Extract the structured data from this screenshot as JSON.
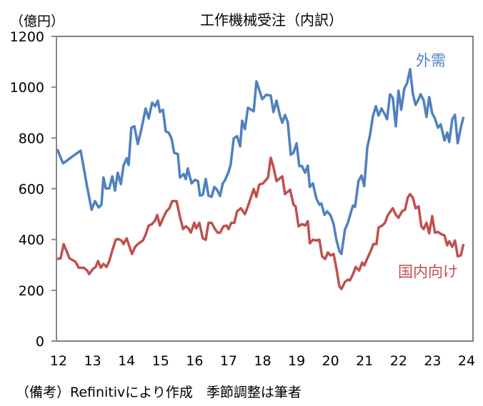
{
  "chart_data": {
    "type": "line",
    "title": "工作機械受注（内訳）",
    "ylabel": "（億円）",
    "xlabel": "",
    "note": "（備考）Refinitivにより作成　季節調整は筆者",
    "xlim": [
      12,
      24
    ],
    "ylim": [
      0,
      1200
    ],
    "x_ticks": [
      "12",
      "13",
      "14",
      "15",
      "16",
      "17",
      "18",
      "19",
      "20",
      "21",
      "22",
      "23",
      "24"
    ],
    "y_ticks": [
      "0",
      "200",
      "400",
      "600",
      "800",
      "1000",
      "1200"
    ],
    "grid": false,
    "legend": "inline labels at line ends",
    "series": [
      {
        "name": "外需",
        "color": "#4f81bd",
        "points": [
          [
            11.96,
            756
          ],
          [
            12.13,
            700
          ],
          [
            12.48,
            734
          ],
          [
            12.65,
            750
          ],
          [
            12.84,
            607
          ],
          [
            12.97,
            517
          ],
          [
            13.07,
            551
          ],
          [
            13.18,
            526
          ],
          [
            13.26,
            537
          ],
          [
            13.32,
            644
          ],
          [
            13.39,
            601
          ],
          [
            13.49,
            601
          ],
          [
            13.58,
            649
          ],
          [
            13.66,
            593
          ],
          [
            13.74,
            663
          ],
          [
            13.83,
            618
          ],
          [
            13.91,
            691
          ],
          [
            14.0,
            720
          ],
          [
            14.06,
            694
          ],
          [
            14.14,
            840
          ],
          [
            14.23,
            846
          ],
          [
            14.33,
            776
          ],
          [
            14.42,
            826
          ],
          [
            14.48,
            863
          ],
          [
            14.56,
            916
          ],
          [
            14.65,
            877
          ],
          [
            14.75,
            939
          ],
          [
            14.84,
            925
          ],
          [
            14.92,
            947
          ],
          [
            14.98,
            902
          ],
          [
            15.07,
            911
          ],
          [
            15.15,
            826
          ],
          [
            15.24,
            821
          ],
          [
            15.32,
            798
          ],
          [
            15.4,
            742
          ],
          [
            15.51,
            736
          ],
          [
            15.57,
            644
          ],
          [
            15.68,
            658
          ],
          [
            15.74,
            638
          ],
          [
            15.8,
            680
          ],
          [
            15.91,
            621
          ],
          [
            16.01,
            635
          ],
          [
            16.1,
            630
          ],
          [
            16.16,
            573
          ],
          [
            16.24,
            576
          ],
          [
            16.33,
            638
          ],
          [
            16.41,
            573
          ],
          [
            16.5,
            568
          ],
          [
            16.58,
            607
          ],
          [
            16.66,
            596
          ],
          [
            16.75,
            571
          ],
          [
            16.83,
            621
          ],
          [
            16.89,
            632
          ],
          [
            17.0,
            666
          ],
          [
            17.06,
            694
          ],
          [
            17.15,
            798
          ],
          [
            17.25,
            807
          ],
          [
            17.34,
            767
          ],
          [
            17.4,
            868
          ],
          [
            17.48,
            835
          ],
          [
            17.57,
            919
          ],
          [
            17.74,
            905
          ],
          [
            17.82,
            1023
          ],
          [
            17.99,
            953
          ],
          [
            18.11,
            970
          ],
          [
            18.24,
            967
          ],
          [
            18.32,
            902
          ],
          [
            18.41,
            947
          ],
          [
            18.51,
            888
          ],
          [
            18.58,
            860
          ],
          [
            18.66,
            891
          ],
          [
            18.74,
            863
          ],
          [
            18.83,
            734
          ],
          [
            18.91,
            742
          ],
          [
            19.0,
            779
          ],
          [
            19.08,
            689
          ],
          [
            19.16,
            689
          ],
          [
            19.25,
            663
          ],
          [
            19.33,
            691
          ],
          [
            19.39,
            607
          ],
          [
            19.48,
            621
          ],
          [
            19.58,
            562
          ],
          [
            19.67,
            537
          ],
          [
            19.73,
            542
          ],
          [
            19.82,
            497
          ],
          [
            19.9,
            511
          ],
          [
            20.0,
            495
          ],
          [
            20.09,
            461
          ],
          [
            20.17,
            399
          ],
          [
            20.26,
            354
          ],
          [
            20.32,
            343
          ],
          [
            20.42,
            438
          ],
          [
            20.51,
            466
          ],
          [
            20.59,
            503
          ],
          [
            20.66,
            534
          ],
          [
            20.72,
            528
          ],
          [
            20.82,
            630
          ],
          [
            20.91,
            652
          ],
          [
            20.99,
            610
          ],
          [
            21.08,
            764
          ],
          [
            21.16,
            812
          ],
          [
            21.24,
            883
          ],
          [
            21.33,
            925
          ],
          [
            21.41,
            888
          ],
          [
            21.5,
            916
          ],
          [
            21.58,
            897
          ],
          [
            21.66,
            874
          ],
          [
            21.75,
            972
          ],
          [
            21.83,
            958
          ],
          [
            21.92,
            846
          ],
          [
            22.0,
            986
          ],
          [
            22.08,
            911
          ],
          [
            22.17,
            995
          ],
          [
            22.25,
            1015
          ],
          [
            22.34,
            1071
          ],
          [
            22.42,
            975
          ],
          [
            22.5,
            930
          ],
          [
            22.59,
            953
          ],
          [
            22.65,
            972
          ],
          [
            22.74,
            947
          ],
          [
            22.82,
            883
          ],
          [
            22.9,
            961
          ],
          [
            22.99,
            897
          ],
          [
            23.07,
            877
          ],
          [
            23.16,
            840
          ],
          [
            23.24,
            854
          ],
          [
            23.35,
            790
          ],
          [
            23.43,
            821
          ],
          [
            23.49,
            784
          ],
          [
            23.58,
            874
          ],
          [
            23.66,
            891
          ],
          [
            23.74,
            779
          ],
          [
            23.83,
            840
          ],
          [
            23.91,
            883
          ]
        ]
      },
      {
        "name": "国内向け",
        "color": "#c0504d",
        "points": [
          [
            11.96,
            323
          ],
          [
            12.06,
            326
          ],
          [
            12.15,
            382
          ],
          [
            12.23,
            357
          ],
          [
            12.32,
            326
          ],
          [
            12.42,
            318
          ],
          [
            12.5,
            312
          ],
          [
            12.59,
            289
          ],
          [
            12.74,
            289
          ],
          [
            12.84,
            278
          ],
          [
            12.9,
            264
          ],
          [
            13.01,
            284
          ],
          [
            13.09,
            292
          ],
          [
            13.16,
            315
          ],
          [
            13.24,
            289
          ],
          [
            13.32,
            304
          ],
          [
            13.41,
            292
          ],
          [
            13.49,
            315
          ],
          [
            13.58,
            357
          ],
          [
            13.68,
            399
          ],
          [
            13.76,
            402
          ],
          [
            13.85,
            396
          ],
          [
            13.91,
            382
          ],
          [
            14.0,
            405
          ],
          [
            14.08,
            374
          ],
          [
            14.16,
            343
          ],
          [
            14.25,
            371
          ],
          [
            14.33,
            382
          ],
          [
            14.48,
            396
          ],
          [
            14.56,
            419
          ],
          [
            14.65,
            455
          ],
          [
            14.75,
            461
          ],
          [
            14.84,
            475
          ],
          [
            14.9,
            497
          ],
          [
            14.98,
            455
          ],
          [
            15.07,
            483
          ],
          [
            15.17,
            511
          ],
          [
            15.26,
            523
          ],
          [
            15.34,
            551
          ],
          [
            15.47,
            551
          ],
          [
            15.57,
            489
          ],
          [
            15.66,
            441
          ],
          [
            15.74,
            452
          ],
          [
            15.82,
            444
          ],
          [
            15.89,
            427
          ],
          [
            15.99,
            466
          ],
          [
            16.05,
            444
          ],
          [
            16.14,
            466
          ],
          [
            16.24,
            405
          ],
          [
            16.33,
            399
          ],
          [
            16.41,
            466
          ],
          [
            16.5,
            466
          ],
          [
            16.6,
            441
          ],
          [
            16.68,
            427
          ],
          [
            16.75,
            427
          ],
          [
            16.85,
            452
          ],
          [
            16.94,
            455
          ],
          [
            17.0,
            441
          ],
          [
            17.08,
            466
          ],
          [
            17.17,
            466
          ],
          [
            17.25,
            511
          ],
          [
            17.36,
            523
          ],
          [
            17.48,
            500
          ],
          [
            17.57,
            531
          ],
          [
            17.74,
            599
          ],
          [
            17.82,
            568
          ],
          [
            17.9,
            616
          ],
          [
            18.01,
            621
          ],
          [
            18.16,
            644
          ],
          [
            18.24,
            722
          ],
          [
            18.32,
            686
          ],
          [
            18.41,
            630
          ],
          [
            18.58,
            649
          ],
          [
            18.66,
            579
          ],
          [
            18.81,
            596
          ],
          [
            18.91,
            537
          ],
          [
            18.97,
            531
          ],
          [
            19.06,
            452
          ],
          [
            19.16,
            461
          ],
          [
            19.25,
            455
          ],
          [
            19.33,
            472
          ],
          [
            19.39,
            385
          ],
          [
            19.48,
            399
          ],
          [
            19.58,
            396
          ],
          [
            19.67,
            399
          ],
          [
            19.75,
            334
          ],
          [
            19.84,
            323
          ],
          [
            19.92,
            349
          ],
          [
            20.0,
            337
          ],
          [
            20.09,
            343
          ],
          [
            20.17,
            287
          ],
          [
            20.26,
            216
          ],
          [
            20.32,
            205
          ],
          [
            20.42,
            233
          ],
          [
            20.51,
            242
          ],
          [
            20.57,
            239
          ],
          [
            20.66,
            264
          ],
          [
            20.74,
            292
          ],
          [
            20.84,
            278
          ],
          [
            20.93,
            309
          ],
          [
            20.99,
            298
          ],
          [
            21.08,
            326
          ],
          [
            21.18,
            354
          ],
          [
            21.26,
            382
          ],
          [
            21.35,
            382
          ],
          [
            21.41,
            447
          ],
          [
            21.52,
            455
          ],
          [
            21.6,
            466
          ],
          [
            21.68,
            495
          ],
          [
            21.83,
            523
          ],
          [
            21.92,
            497
          ],
          [
            22.0,
            486
          ],
          [
            22.1,
            511
          ],
          [
            22.19,
            517
          ],
          [
            22.27,
            565
          ],
          [
            22.34,
            579
          ],
          [
            22.42,
            565
          ],
          [
            22.5,
            523
          ],
          [
            22.59,
            531
          ],
          [
            22.67,
            452
          ],
          [
            22.74,
            441
          ],
          [
            22.82,
            466
          ],
          [
            22.9,
            424
          ],
          [
            22.99,
            492
          ],
          [
            23.07,
            427
          ],
          [
            23.16,
            430
          ],
          [
            23.24,
            422
          ],
          [
            23.35,
            416
          ],
          [
            23.43,
            377
          ],
          [
            23.49,
            393
          ],
          [
            23.58,
            371
          ],
          [
            23.66,
            396
          ],
          [
            23.74,
            334
          ],
          [
            23.83,
            337
          ],
          [
            23.91,
            382
          ]
        ]
      }
    ]
  }
}
